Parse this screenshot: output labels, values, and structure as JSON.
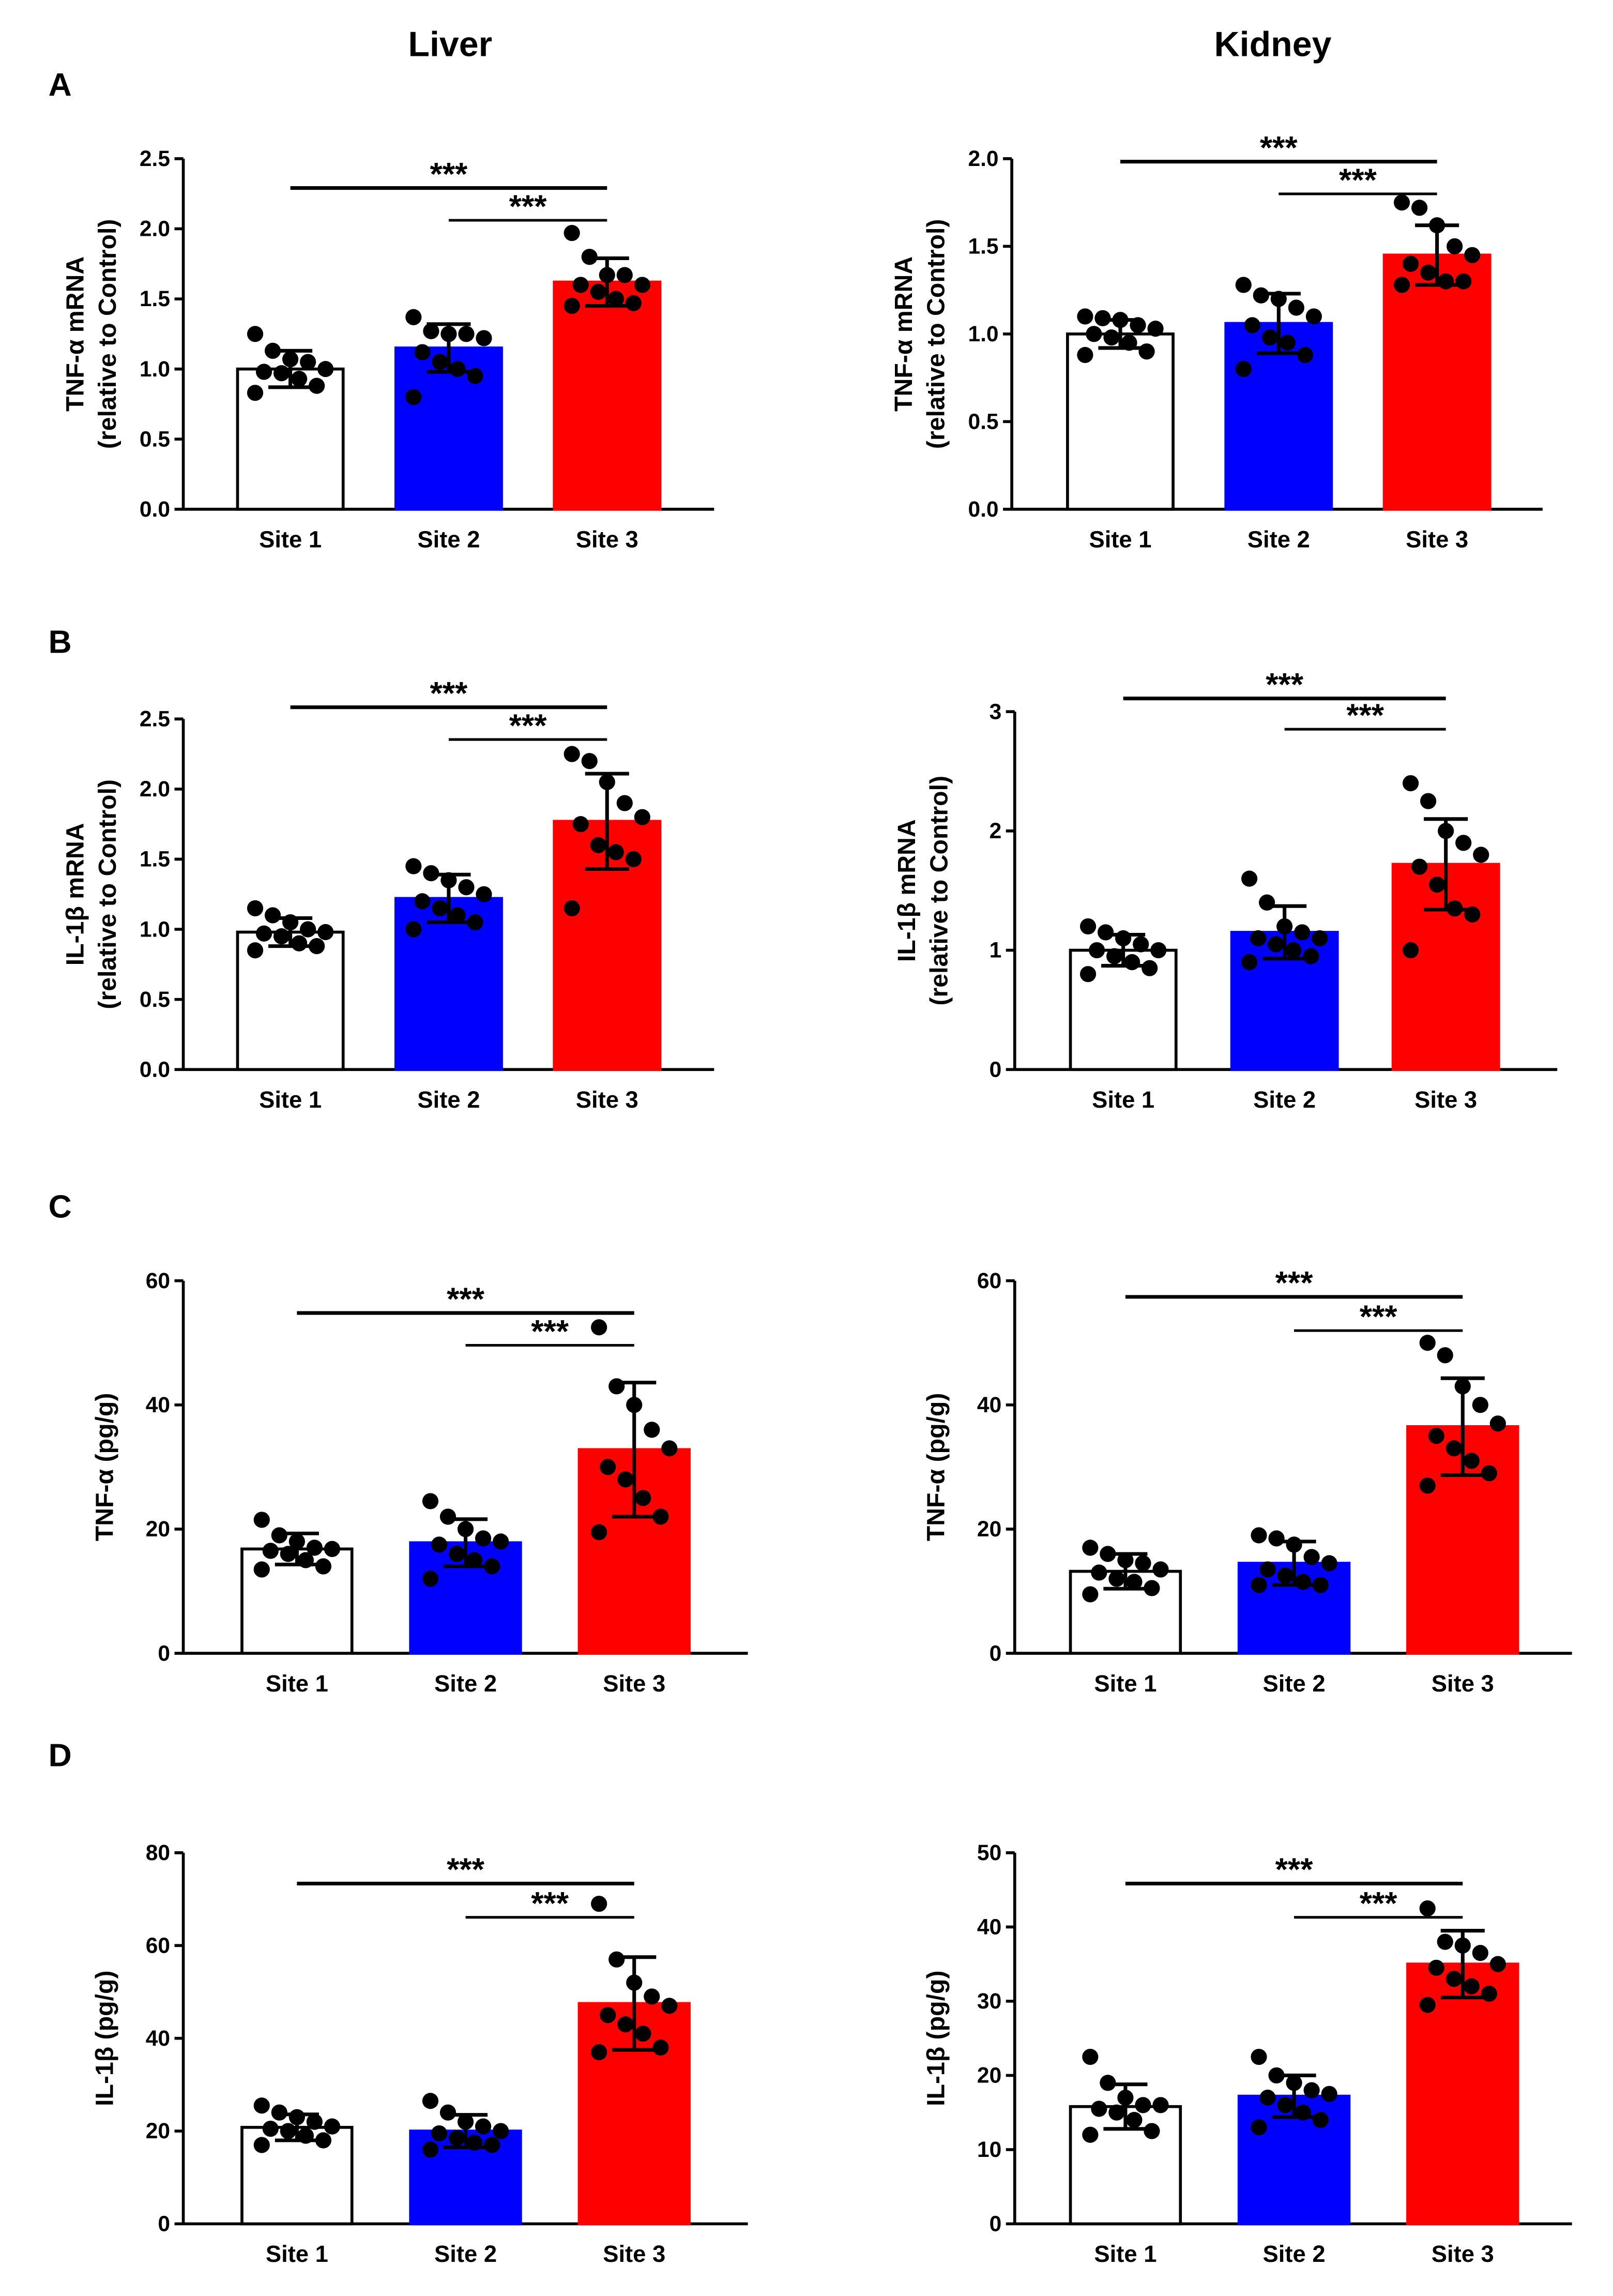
{
  "column_titles": [
    "Liver",
    "Kidney"
  ],
  "panel_letters": [
    "A",
    "B",
    "C",
    "D"
  ],
  "colors": {
    "site1": "#ffffff",
    "site2": "#0000ff",
    "site3": "#ff0000",
    "axis": "#000000"
  },
  "chart_data": [
    {
      "type": "bar",
      "panel": "A",
      "organ": "Liver",
      "ylabel": [
        "TNF-α mRNA",
        "(relative to Control)"
      ],
      "ylim": [
        0,
        2.5
      ],
      "yticks": [
        "0.0",
        "0.5",
        "1.0",
        "1.5",
        "2.0",
        "2.5"
      ],
      "categories": [
        "Site 1",
        "Site 2",
        "Site 3"
      ],
      "means": [
        1.0,
        1.15,
        1.62
      ],
      "sd": [
        0.13,
        0.17,
        0.17
      ],
      "points": [
        [
          1.25,
          1.13,
          1.07,
          1.05,
          1.0,
          0.98,
          0.97,
          0.93,
          0.88,
          0.83
        ],
        [
          1.37,
          1.27,
          1.25,
          1.25,
          1.22,
          1.12,
          1.05,
          1.0,
          0.95,
          0.8
        ],
        [
          1.97,
          1.8,
          1.67,
          1.67,
          1.6,
          1.6,
          1.55,
          1.5,
          1.47,
          1.45
        ]
      ],
      "significance": [
        {
          "from": "Site 1",
          "to": "Site 3",
          "label": "***"
        },
        {
          "from": "Site 2",
          "to": "Site 3",
          "label": "***"
        }
      ]
    },
    {
      "type": "bar",
      "panel": "A",
      "organ": "Kidney",
      "ylabel": [
        "TNF-α mRNA",
        "(relative to Control)"
      ],
      "ylim": [
        0,
        2.0
      ],
      "yticks": [
        "0.0",
        "0.5",
        "1.0",
        "1.5",
        "2.0"
      ],
      "categories": [
        "Site 1",
        "Site 2",
        "Site 3"
      ],
      "means": [
        1.0,
        1.06,
        1.45
      ],
      "sd": [
        0.08,
        0.17,
        0.17
      ],
      "points": [
        [
          1.1,
          1.09,
          1.08,
          1.05,
          1.03,
          1.0,
          0.98,
          0.95,
          0.9,
          0.88
        ],
        [
          1.28,
          1.22,
          1.2,
          1.15,
          1.1,
          1.05,
          0.98,
          0.95,
          0.88,
          0.8
        ],
        [
          1.75,
          1.72,
          1.62,
          1.5,
          1.45,
          1.4,
          1.35,
          1.3,
          1.3,
          1.28
        ]
      ],
      "significance": [
        {
          "from": "Site 1",
          "to": "Site 3",
          "label": "***"
        },
        {
          "from": "Site 2",
          "to": "Site 3",
          "label": "***"
        }
      ]
    },
    {
      "type": "bar",
      "panel": "B",
      "organ": "Liver",
      "ylabel": [
        "IL-1β mRNA",
        "(relative to Control)"
      ],
      "ylim": [
        0,
        2.5
      ],
      "yticks": [
        "0.0",
        "0.5",
        "1.0",
        "1.5",
        "2.0",
        "2.5"
      ],
      "categories": [
        "Site 1",
        "Site 2",
        "Site 3"
      ],
      "means": [
        0.98,
        1.22,
        1.77
      ],
      "sd": [
        0.1,
        0.17,
        0.34
      ],
      "points": [
        [
          1.15,
          1.1,
          1.05,
          1.0,
          0.98,
          0.97,
          0.95,
          0.9,
          0.88,
          0.85
        ],
        [
          1.45,
          1.4,
          1.35,
          1.3,
          1.25,
          1.2,
          1.15,
          1.1,
          1.05,
          1.0
        ],
        [
          2.25,
          2.2,
          2.05,
          1.9,
          1.8,
          1.75,
          1.6,
          1.55,
          1.5,
          1.15
        ]
      ],
      "significance": [
        {
          "from": "Site 1",
          "to": "Site 3",
          "label": "***"
        },
        {
          "from": "Site 2",
          "to": "Site 3",
          "label": "***"
        }
      ]
    },
    {
      "type": "bar",
      "panel": "B",
      "organ": "Kidney",
      "ylabel": [
        "IL-1β mRNA",
        "(relative to Control)"
      ],
      "ylim": [
        0,
        3
      ],
      "yticks": [
        "0",
        "1",
        "2",
        "3"
      ],
      "categories": [
        "Site 1",
        "Site 2",
        "Site 3"
      ],
      "means": [
        1.0,
        1.15,
        1.72
      ],
      "sd": [
        0.13,
        0.22,
        0.38
      ],
      "points": [
        [
          1.2,
          1.15,
          1.1,
          1.05,
          1.0,
          1.0,
          0.95,
          0.9,
          0.85,
          0.8
        ],
        [
          1.6,
          1.4,
          1.2,
          1.15,
          1.1,
          1.1,
          1.05,
          1.0,
          0.95,
          0.9
        ],
        [
          2.4,
          2.25,
          2.0,
          1.9,
          1.8,
          1.7,
          1.55,
          1.35,
          1.3,
          1.0
        ]
      ],
      "significance": [
        {
          "from": "Site 1",
          "to": "Site 3",
          "label": "***"
        },
        {
          "from": "Site 2",
          "to": "Site 3",
          "label": "***"
        }
      ]
    },
    {
      "type": "bar",
      "panel": "C",
      "organ": "Liver",
      "ylabel": [
        "TNF-α (pg/g)"
      ],
      "ylim": [
        0,
        60
      ],
      "yticks": [
        "0",
        "20",
        "40",
        "60"
      ],
      "categories": [
        "Site 1",
        "Site 2",
        "Site 3"
      ],
      "means": [
        16.8,
        17.8,
        32.8
      ],
      "sd": [
        2.5,
        3.8,
        10.8
      ],
      "points": [
        [
          21.5,
          19,
          18,
          17,
          16.8,
          16.5,
          16,
          15,
          14,
          13.5
        ],
        [
          24.5,
          22,
          20,
          18.5,
          18,
          17.5,
          16,
          15,
          14,
          12
        ],
        [
          52.5,
          43,
          40,
          36,
          33,
          30,
          28,
          25,
          22,
          19.5
        ]
      ],
      "significance": [
        {
          "from": "Site 1",
          "to": "Site 3",
          "label": "***"
        },
        {
          "from": "Site 2",
          "to": "Site 3",
          "label": "***"
        }
      ]
    },
    {
      "type": "bar",
      "panel": "C",
      "organ": "Kidney",
      "ylabel": [
        "TNF-α (pg/g)"
      ],
      "ylim": [
        0,
        60
      ],
      "yticks": [
        "0",
        "20",
        "40",
        "60"
      ],
      "categories": [
        "Site 1",
        "Site 2",
        "Site 3"
      ],
      "means": [
        13.2,
        14.5,
        36.5
      ],
      "sd": [
        2.8,
        3.5,
        7.8
      ],
      "points": [
        [
          17,
          16,
          15,
          14.5,
          13.5,
          13,
          12,
          11.5,
          10.5,
          9.5
        ],
        [
          19,
          18.5,
          17.5,
          15.5,
          14.5,
          13.5,
          12.5,
          11.5,
          11,
          11
        ],
        [
          50,
          48,
          43,
          40,
          37,
          35,
          33,
          31,
          29,
          27
        ]
      ],
      "significance": [
        {
          "from": "Site 1",
          "to": "Site 3",
          "label": "***"
        },
        {
          "from": "Site 2",
          "to": "Site 3",
          "label": "***"
        }
      ]
    },
    {
      "type": "bar",
      "panel": "D",
      "organ": "Liver",
      "ylabel": [
        "IL-1β (pg/g)"
      ],
      "ylim": [
        0,
        80
      ],
      "yticks": [
        "0",
        "20",
        "40",
        "60",
        "80"
      ],
      "categories": [
        "Site 1",
        "Site 2",
        "Site 3"
      ],
      "means": [
        20.8,
        20.0,
        47.5
      ],
      "sd": [
        2.8,
        3.5,
        10
      ],
      "points": [
        [
          25.5,
          24,
          23,
          22,
          21,
          20.5,
          20,
          19,
          18,
          17
        ],
        [
          26.5,
          24,
          22,
          21,
          20,
          19.5,
          18.5,
          17.5,
          17,
          16
        ],
        [
          69,
          57,
          52,
          49,
          47,
          45,
          43,
          41,
          38,
          37
        ]
      ],
      "significance": [
        {
          "from": "Site 1",
          "to": "Site 3",
          "label": "***"
        },
        {
          "from": "Site 2",
          "to": "Site 3",
          "label": "***"
        }
      ]
    },
    {
      "type": "bar",
      "panel": "D",
      "organ": "Kidney",
      "ylabel": [
        "IL-1β (pg/g)"
      ],
      "ylim": [
        0,
        50
      ],
      "yticks": [
        "0",
        "10",
        "20",
        "30",
        "40",
        "50"
      ],
      "categories": [
        "Site 1",
        "Site 2",
        "Site 3"
      ],
      "means": [
        15.8,
        17.2,
        35.0
      ],
      "sd": [
        3,
        2.8,
        4.5
      ],
      "points": [
        [
          22.5,
          19,
          17,
          16,
          16,
          15.5,
          15,
          14,
          12.5,
          12
        ],
        [
          22.5,
          20,
          19,
          18,
          17.5,
          17,
          16,
          15,
          14,
          13
        ],
        [
          42.5,
          38,
          37.5,
          36.5,
          35,
          34.5,
          33,
          32,
          31,
          29.5
        ]
      ],
      "significance": [
        {
          "from": "Site 1",
          "to": "Site 3",
          "label": "***"
        },
        {
          "from": "Site 2",
          "to": "Site 3",
          "label": "***"
        }
      ]
    }
  ]
}
